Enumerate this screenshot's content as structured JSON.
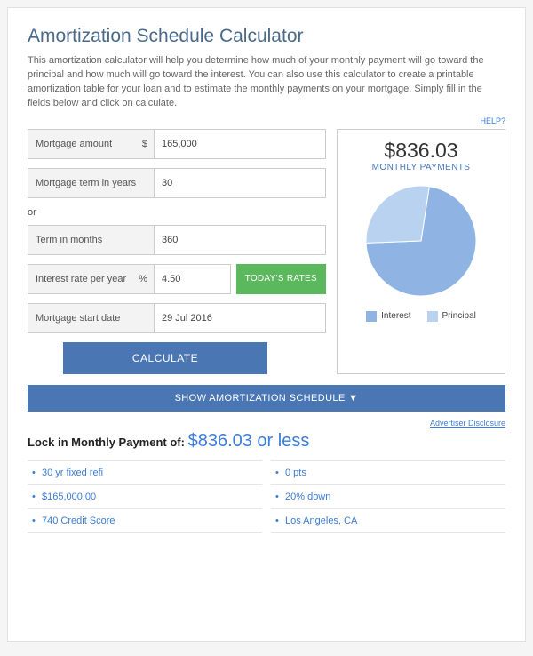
{
  "title": "Amortization Schedule Calculator",
  "description": "This amortization calculator will help you determine how much of your monthly payment will go toward the principal and how much will go toward the interest. You can also use this calculator to create a printable amortization table for your loan and to estimate the monthly payments on your mortgage. Simply fill in the fields below and click on calculate.",
  "help_label": "HELP?",
  "form": {
    "mortgage_amount": {
      "label": "Mortgage amount",
      "unit": "$",
      "value": "165,000"
    },
    "term_years": {
      "label": "Mortgage term in years",
      "value": "30"
    },
    "or_text": "or",
    "term_months": {
      "label": "Term in months",
      "value": "360"
    },
    "interest": {
      "label": "Interest rate per year",
      "unit": "%",
      "value": "4.50"
    },
    "todays_rates": "TODAY'S RATES",
    "start_date": {
      "label": "Mortgage start date",
      "value": "29 Jul 2016"
    },
    "calculate": "CALCULATE"
  },
  "chart": {
    "type": "pie",
    "amount": "$836.03",
    "subtitle": "MONTHLY PAYMENTS",
    "slices": [
      {
        "label": "Interest",
        "value": 72,
        "color": "#8fb4e3"
      },
      {
        "label": "Principal",
        "value": 28,
        "color": "#b9d2f0"
      }
    ],
    "background_color": "#ffffff",
    "border_color": "#cccccc",
    "radius": 62
  },
  "show_schedule": "SHOW AMORTIZATION SCHEDULE ▼",
  "disclosure": "Advertiser Disclosure",
  "lock": {
    "prefix": "Lock in Monthly Payment of: ",
    "highlight": "$836.03 or less"
  },
  "summary_left": [
    "30 yr fixed refi",
    "$165,000.00",
    "740 Credit Score"
  ],
  "summary_right": [
    "0 pts",
    "20% down",
    "Los Angeles, CA"
  ],
  "colors": {
    "primary": "#4a77b4",
    "link": "#3b7dd8",
    "green": "#5cb85c"
  }
}
